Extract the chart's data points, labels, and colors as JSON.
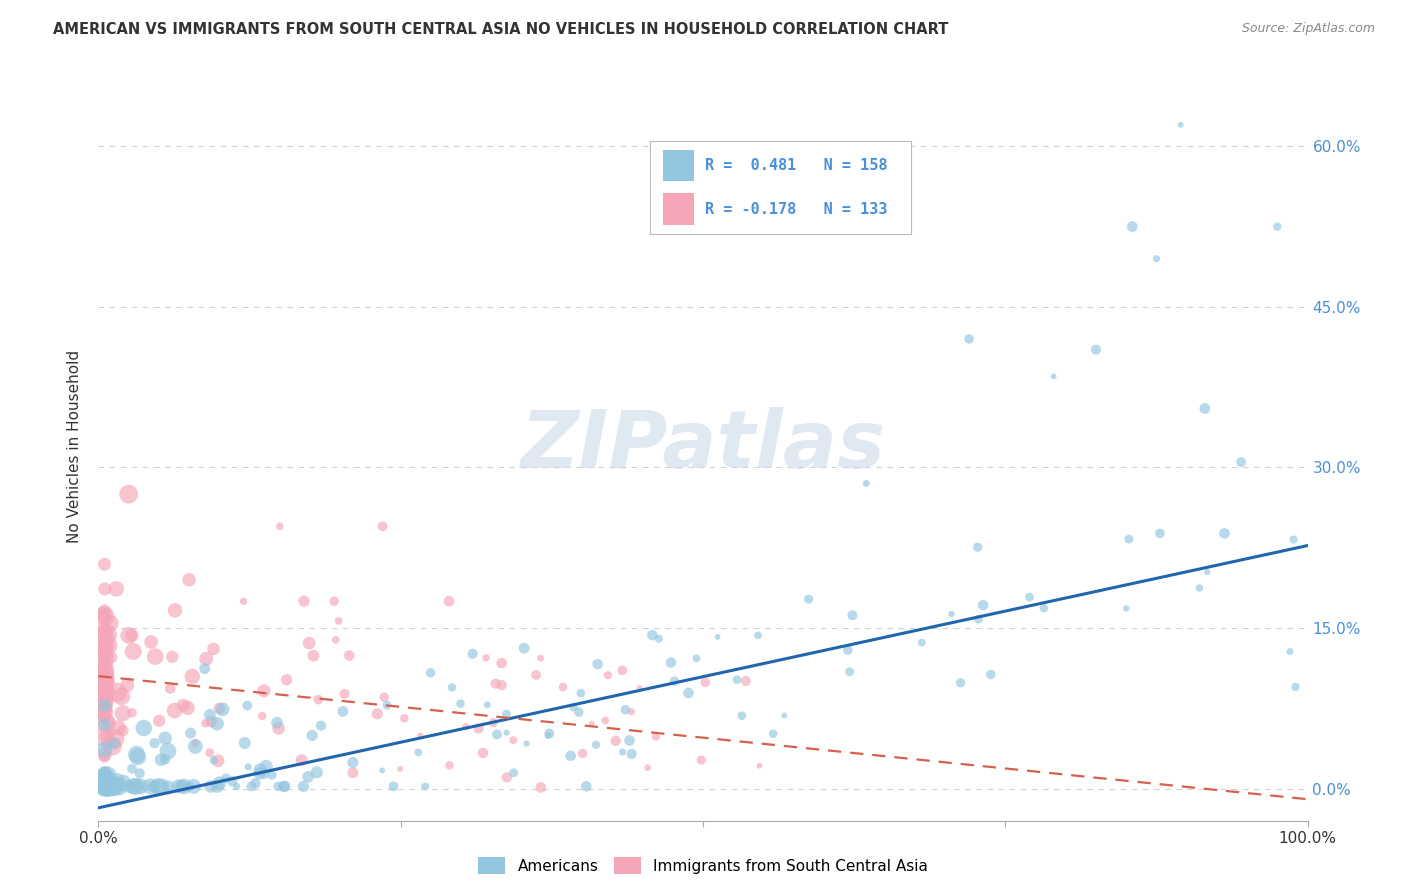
{
  "title": "AMERICAN VS IMMIGRANTS FROM SOUTH CENTRAL ASIA NO VEHICLES IN HOUSEHOLD CORRELATION CHART",
  "source": "Source: ZipAtlas.com",
  "ylabel": "No Vehicles in Household",
  "xlim": [
    0,
    1.0
  ],
  "ylim": [
    -0.03,
    0.67
  ],
  "yticks": [
    0.0,
    0.15,
    0.3,
    0.45,
    0.6
  ],
  "ytick_labels": [
    "0.0%",
    "15.0%",
    "30.0%",
    "45.0%",
    "60.0%"
  ],
  "xticks": [
    0.0,
    0.25,
    0.5,
    0.75,
    1.0
  ],
  "xtick_labels": [
    "0.0%",
    "",
    "",
    "",
    "100.0%"
  ],
  "bg_color": "#ffffff",
  "grid_color": "#cccccc",
  "watermark_text": "ZIPatlas",
  "legend_R1": "0.481",
  "legend_N1": "158",
  "legend_R2": "-0.178",
  "legend_N2": "133",
  "blue_color": "#92c5de",
  "pink_color": "#f4a5b8",
  "blue_line_color": "#2166ac",
  "pink_line_color": "#d6604d",
  "blue_slope": 0.245,
  "blue_intercept": -0.018,
  "pink_slope": -0.115,
  "pink_intercept": 0.105,
  "text_color": "#333333",
  "right_axis_color": "#4a90d9",
  "legend_text_color": "#4a90d9"
}
